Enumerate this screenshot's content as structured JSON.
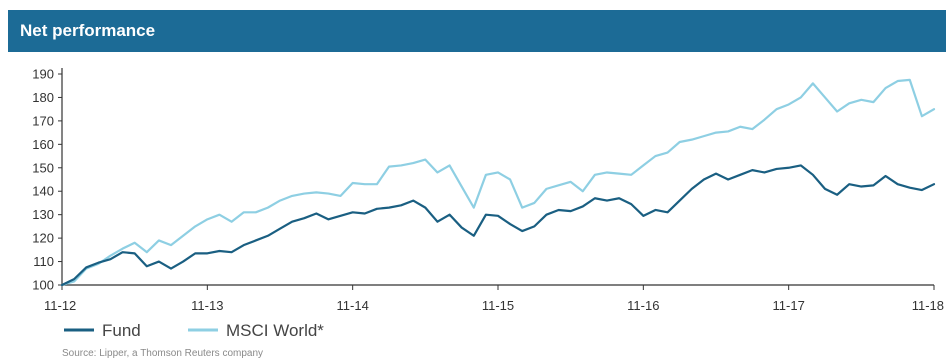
{
  "header": {
    "title": "Net performance"
  },
  "source": "Source: Lipper, a Thomson Reuters company",
  "colors": {
    "header_bg": "#1c6b96",
    "fund": "#1a5f82",
    "benchmark": "#8ecfe3",
    "axis": "#333333"
  },
  "chart_data": {
    "type": "line",
    "title": "",
    "xlabel": "",
    "ylabel": "",
    "ylim": [
      100,
      190
    ],
    "yticks": [
      100,
      110,
      120,
      130,
      140,
      150,
      160,
      170,
      180,
      190
    ],
    "xlim": [
      0,
      72
    ],
    "xticks": [
      {
        "x": 0,
        "label": "11-12"
      },
      {
        "x": 12,
        "label": "11-13"
      },
      {
        "x": 24,
        "label": "11-14"
      },
      {
        "x": 36,
        "label": "11-15"
      },
      {
        "x": 48,
        "label": "11-16"
      },
      {
        "x": 60,
        "label": "11-17"
      },
      {
        "x": 72,
        "label": "11-18"
      }
    ],
    "grid": false,
    "legend": "bottom-left",
    "series": [
      {
        "name": "Fund",
        "x": [
          0,
          1,
          2,
          3,
          4,
          5,
          6,
          7,
          8,
          9,
          10,
          11,
          12,
          13,
          14,
          15,
          16,
          17,
          18,
          19,
          20,
          21,
          22,
          23,
          24,
          25,
          26,
          27,
          28,
          29,
          30,
          31,
          32,
          33,
          34,
          35,
          36,
          37,
          38,
          39,
          40,
          41,
          42,
          43,
          44,
          45,
          46,
          47,
          48,
          49,
          50,
          51,
          52,
          53,
          54,
          55,
          56,
          57,
          58,
          59,
          60,
          61,
          62,
          63,
          64,
          65,
          66,
          67,
          68,
          69,
          70,
          71,
          72
        ],
        "values": [
          100,
          102.5,
          107.5,
          109.5,
          111,
          114,
          113.5,
          108,
          110,
          107,
          110,
          113.5,
          113.5,
          114.5,
          114,
          117,
          119,
          121,
          124,
          127,
          128.5,
          130.5,
          128,
          129.5,
          131,
          130.5,
          132.5,
          133,
          134,
          136,
          133,
          127,
          130,
          124.5,
          121,
          130,
          129.5,
          126,
          123,
          125,
          130,
          132,
          131.5,
          133.5,
          137,
          136,
          137,
          134.5,
          129.5,
          132,
          131,
          136,
          141,
          145,
          147.5,
          145,
          147,
          149,
          148,
          149.5,
          150,
          151,
          147,
          141,
          138.5,
          143,
          142,
          142.5,
          146.5,
          143,
          141.5,
          140.5,
          143
        ]
      },
      {
        "name": "MSCI World*",
        "x": [
          0,
          1,
          2,
          3,
          4,
          5,
          6,
          7,
          8,
          9,
          10,
          11,
          12,
          13,
          14,
          15,
          16,
          17,
          18,
          19,
          20,
          21,
          22,
          23,
          24,
          25,
          26,
          27,
          28,
          29,
          30,
          31,
          32,
          33,
          34,
          35,
          36,
          37,
          38,
          39,
          40,
          41,
          42,
          43,
          44,
          45,
          46,
          47,
          48,
          49,
          50,
          51,
          52,
          53,
          54,
          55,
          56,
          57,
          58,
          59,
          60,
          61,
          62,
          63,
          64,
          65,
          66,
          67,
          68,
          69,
          70,
          71,
          72
        ],
        "values": [
          100,
          101.5,
          107,
          109,
          112.5,
          115.5,
          118,
          114,
          119,
          117,
          121,
          125,
          128,
          130,
          127,
          131,
          131,
          133,
          136,
          138,
          139,
          139.5,
          139,
          138,
          143.5,
          143,
          143,
          150.5,
          151,
          152,
          153.5,
          148,
          151,
          142,
          133,
          147,
          148,
          145,
          133,
          135,
          141,
          142.5,
          144,
          140,
          147,
          148,
          147.5,
          147,
          151,
          155,
          156.5,
          161,
          162,
          163.5,
          165,
          165.5,
          167.5,
          166.5,
          170.5,
          175,
          177,
          180,
          186,
          180,
          174,
          177.5,
          179,
          178,
          184,
          187,
          187.5,
          172,
          175
        ]
      }
    ]
  }
}
